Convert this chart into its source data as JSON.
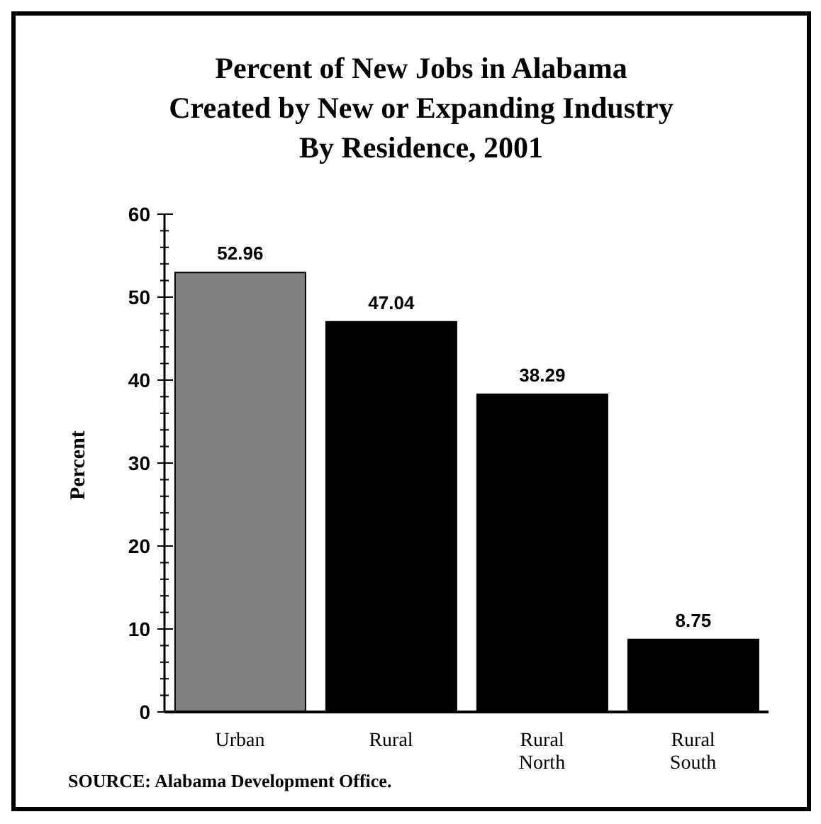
{
  "chart_data": {
    "type": "bar",
    "title": "Percent of New Jobs in Alabama\nCreated by New or Expanding Industry\nBy Residence, 2001",
    "ylabel": "Percent",
    "categories": [
      "Urban",
      "Rural",
      "Rural North",
      "Rural South"
    ],
    "values": [
      52.96,
      47.04,
      38.29,
      8.75
    ],
    "colors": [
      "#808080",
      "#000000",
      "#000000",
      "#000000"
    ],
    "ylim": [
      0,
      60
    ],
    "yticks": [
      0,
      {
        "value": 2,
        "label": null
      },
      {
        "value": 4,
        "label": null
      },
      {
        "value": 6,
        "label": null
      },
      {
        "value": 8,
        "label": null
      },
      10,
      {
        "value": 12,
        "label": null
      },
      {
        "value": 14,
        "label": null
      },
      {
        "value": 16,
        "label": null
      },
      {
        "value": 18,
        "label": null
      },
      20,
      {
        "value": 22,
        "label": null
      },
      {
        "value": 24,
        "label": null
      },
      {
        "value": 26,
        "label": null
      },
      {
        "value": 28,
        "label": null
      },
      30,
      {
        "value": 32,
        "label": null
      },
      {
        "value": 34,
        "label": null
      },
      {
        "value": 36,
        "label": null
      },
      {
        "value": 38,
        "label": null
      },
      40,
      {
        "value": 42,
        "label": null
      },
      {
        "value": 44,
        "label": null
      },
      {
        "value": 46,
        "label": null
      },
      {
        "value": 48,
        "label": null
      },
      50,
      {
        "value": 52,
        "label": null
      },
      {
        "value": 54,
        "label": null
      },
      {
        "value": 56,
        "label": null
      },
      {
        "value": 58,
        "label": null
      },
      60
    ],
    "data_labels": true,
    "annotations": [
      "SOURCE: Alabama Development Office."
    ]
  }
}
